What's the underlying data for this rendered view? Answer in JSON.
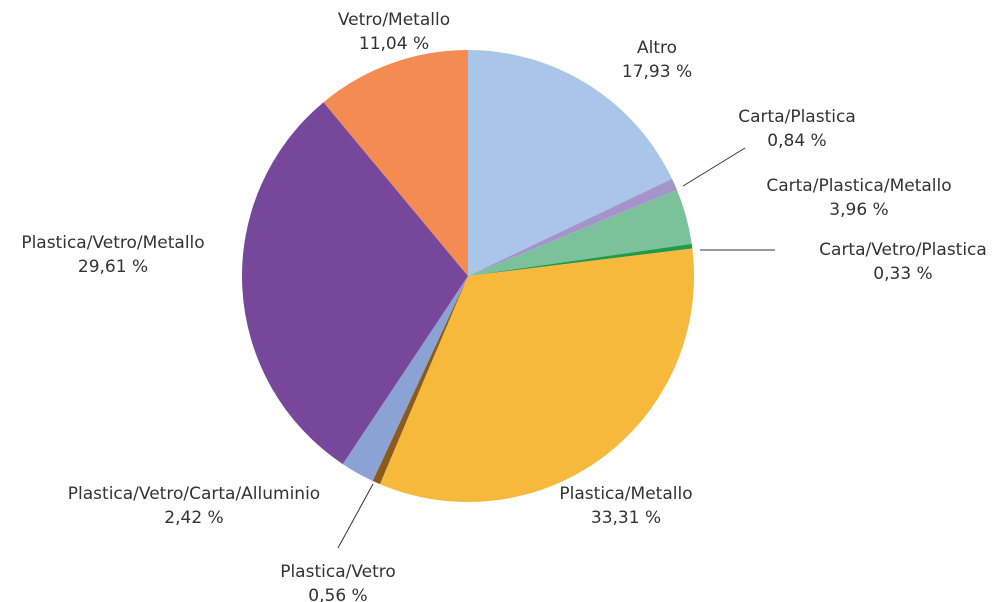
{
  "chart_data": {
    "type": "pie",
    "start_angle_deg": 0,
    "direction": "clockwise",
    "slices": [
      {
        "label": "Altro",
        "value": 17.93,
        "value_text": "17,93 %",
        "color": "#A9C6E8"
      },
      {
        "label": "Carta/Plastica",
        "value": 0.84,
        "value_text": "0,84 %",
        "color": "#A594CC"
      },
      {
        "label": "Carta/Plastica/Metallo",
        "value": 3.96,
        "value_text": "3,96 %",
        "color": "#7BC29A"
      },
      {
        "label": "Carta/Vetro/Plastica",
        "value": 0.33,
        "value_text": "0,33 %",
        "color": "#219A4A"
      },
      {
        "label": "Plastica/Metallo",
        "value": 33.31,
        "value_text": "33,31 %",
        "color": "#F6B93B"
      },
      {
        "label": "Plastica/Vetro",
        "value": 0.56,
        "value_text": "0,56 %",
        "color": "#8B5A1E"
      },
      {
        "label": "Plastica/Vetro/Carta/Alluminio",
        "value": 2.42,
        "value_text": "2,42 %",
        "color": "#8AA2D4"
      },
      {
        "label": "Plastica/Vetro/Metallo",
        "value": 29.61,
        "value_text": "29,61 %",
        "color": "#77479C"
      },
      {
        "label": "Vetro/Metallo",
        "value": 11.04,
        "value_text": "11,04 %",
        "color": "#F48B52"
      }
    ]
  }
}
